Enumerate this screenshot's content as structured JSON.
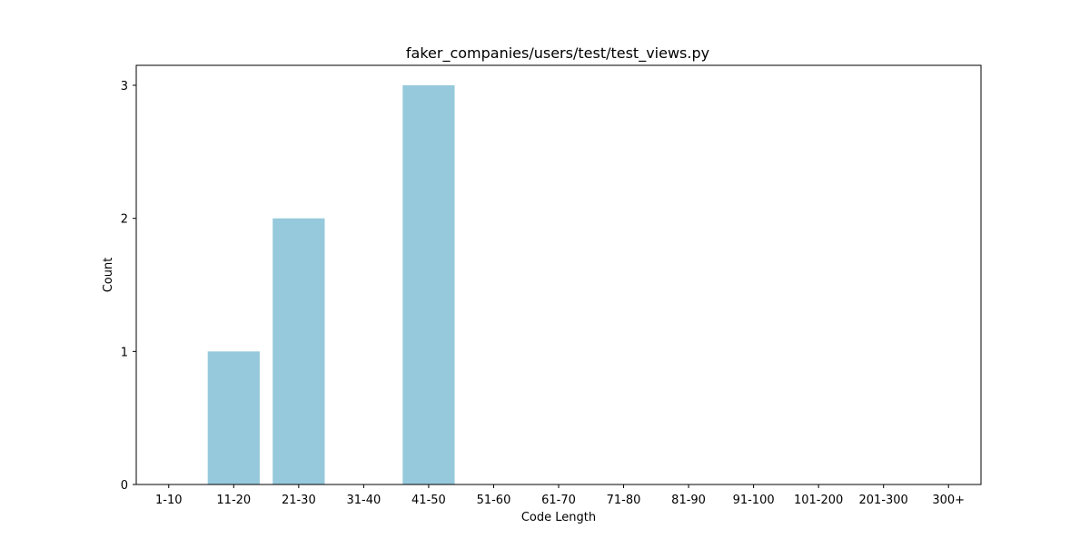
{
  "chart_data": {
    "type": "bar",
    "title": "faker_companies/users/test/test_views.py",
    "xlabel": "Code Length",
    "ylabel": "Count",
    "categories": [
      "1-10",
      "11-20",
      "21-30",
      "31-40",
      "41-50",
      "51-60",
      "61-70",
      "71-80",
      "81-90",
      "91-100",
      "101-200",
      "201-300",
      "300+"
    ],
    "values": [
      0,
      1,
      2,
      0,
      3,
      0,
      0,
      0,
      0,
      0,
      0,
      0,
      0
    ],
    "ylim": [
      0,
      3.15
    ],
    "yticks": [
      0,
      1,
      2,
      3
    ],
    "bar_color": "#96c9dc",
    "grid": false,
    "legend": "none"
  }
}
